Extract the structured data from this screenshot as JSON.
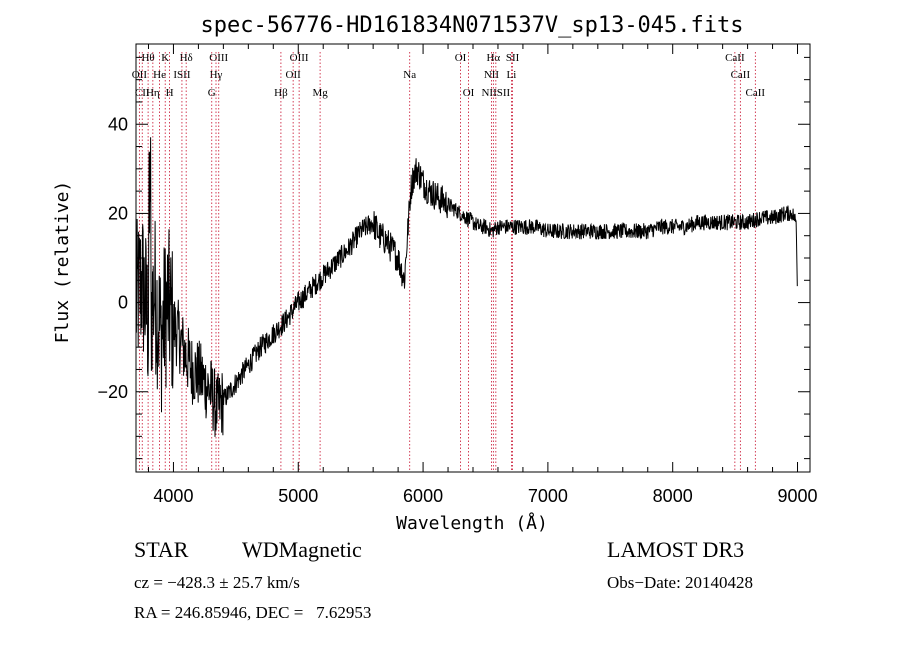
{
  "chart_data": {
    "type": "line",
    "title": "spec-56776-HD161834N071537V_sp13-045.fits",
    "xlabel": "Wavelength (Å)",
    "ylabel": "Flux (relative)",
    "xlim": [
      3700,
      9100
    ],
    "ylim": [
      -38,
      58
    ],
    "xticks": [
      4000,
      5000,
      6000,
      7000,
      8000,
      9000
    ],
    "xtick_labels": [
      "4000",
      "5000",
      "6000",
      "7000",
      "8000",
      "9000"
    ],
    "yticks": [
      -20,
      0,
      20,
      40
    ],
    "ytick_labels": [
      "−20",
      "0",
      "20",
      "40"
    ],
    "grid": false,
    "legend": "none",
    "series": [
      {
        "name": "spectrum",
        "x": [
          3700,
          3750,
          3800,
          3850,
          3900,
          3950,
          4000,
          4050,
          4100,
          4150,
          4200,
          4250,
          4300,
          4350,
          4400,
          4450,
          4500,
          4600,
          4700,
          4800,
          4900,
          5000,
          5100,
          5200,
          5300,
          5400,
          5500,
          5550,
          5600,
          5650,
          5700,
          5750,
          5800,
          5850,
          5900,
          5920,
          5950,
          6000,
          6050,
          6100,
          6150,
          6200,
          6250,
          6300,
          6350,
          6400,
          6450,
          6500,
          6550,
          6600,
          6700,
          6800,
          6900,
          7000,
          7100,
          7200,
          7300,
          7400,
          7500,
          7600,
          7700,
          7800,
          7900,
          8000,
          8100,
          8200,
          8300,
          8400,
          8500,
          8600,
          8700,
          8800,
          8900,
          8960,
          8990,
          9000
        ],
        "y": [
          0,
          5,
          -5,
          3,
          -8,
          0,
          -5,
          -8,
          -12,
          -15,
          -16,
          -18,
          -20,
          -24,
          -22,
          -20,
          -18,
          -14,
          -10,
          -7,
          -4,
          0,
          3,
          6,
          9,
          12,
          16,
          17,
          18,
          15,
          14,
          12,
          10,
          5,
          25,
          28,
          30,
          27,
          25,
          24,
          23,
          22,
          21,
          20,
          19,
          18,
          17,
          17,
          16,
          17,
          17,
          17,
          17,
          16,
          16,
          16,
          16,
          16,
          16,
          16,
          16,
          16,
          17,
          17,
          17,
          18,
          18,
          18,
          18,
          18,
          19,
          19,
          20,
          20,
          18,
          2
        ]
      }
    ],
    "lines": [
      {
        "label": "Hθ",
        "x": 3797,
        "row": 1
      },
      {
        "label": "K",
        "x": 3934,
        "row": 1
      },
      {
        "label": "Hδ",
        "x": 4102,
        "row": 1
      },
      {
        "label": "OIII",
        "x": 4363,
        "row": 1
      },
      {
        "label": "OIII",
        "x": 5007,
        "row": 1
      },
      {
        "label": "OI",
        "x": 6300,
        "row": 1
      },
      {
        "label": "Hα",
        "x": 6563,
        "row": 1
      },
      {
        "label": "SII",
        "x": 6717,
        "row": 1
      },
      {
        "label": "CaII",
        "x": 8498,
        "row": 1
      },
      {
        "label": "OII",
        "x": 3727,
        "row": 2
      },
      {
        "label": "He",
        "x": 3889,
        "row": 2
      },
      {
        "label": "ISII",
        "x": 4068,
        "row": 2
      },
      {
        "label": "Hγ",
        "x": 4341,
        "row": 2
      },
      {
        "label": "OII",
        "x": 4959,
        "row": 2
      },
      {
        "label": "Na",
        "x": 5893,
        "row": 2
      },
      {
        "label": "NII",
        "x": 6548,
        "row": 2
      },
      {
        "label": "Li",
        "x": 6708,
        "row": 2
      },
      {
        "label": "CaII",
        "x": 8542,
        "row": 2
      },
      {
        "label": "CII",
        "x": 3750,
        "row": 3
      },
      {
        "label": "Hη",
        "x": 3835,
        "row": 3
      },
      {
        "label": "H",
        "x": 3969,
        "row": 3
      },
      {
        "label": "G",
        "x": 4307,
        "row": 3
      },
      {
        "label": "Hβ",
        "x": 4861,
        "row": 3
      },
      {
        "label": "Mg",
        "x": 5175,
        "row": 3
      },
      {
        "label": "OI",
        "x": 6364,
        "row": 3
      },
      {
        "label": "NIISII",
        "x": 6583,
        "row": 3
      },
      {
        "label": "CaII",
        "x": 8662,
        "row": 3
      }
    ]
  },
  "info": {
    "class_label": "STAR",
    "subclass_label": "WDMagnetic",
    "survey": "LAMOST DR3",
    "cz": "cz = −428.3 ± 25.7 km/s",
    "obs_date": "Obs−Date: 20140428",
    "coords": "RA = 246.85946, DEC =   7.62953"
  }
}
